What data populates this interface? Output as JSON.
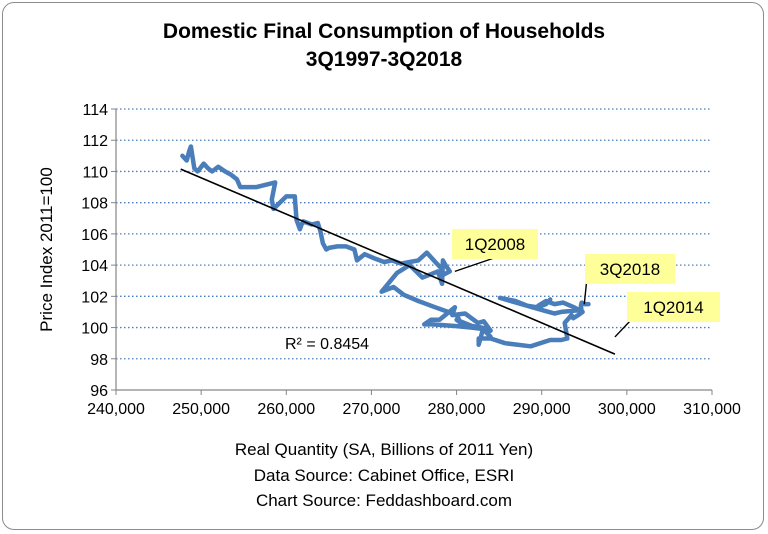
{
  "chart_data": {
    "type": "scatter",
    "title": "Domestic Final Consumption of Households",
    "subtitle": "3Q1997-3Q2018",
    "xlabel": "Real Quantity (SA, Billions of 2011 Yen)",
    "ylabel": "Price Index 2011=100",
    "xlim": [
      240000,
      310000
    ],
    "ylim": [
      96,
      114
    ],
    "xticks": [
      240000,
      250000,
      260000,
      270000,
      280000,
      290000,
      300000,
      310000
    ],
    "xtick_labels": [
      "240,000",
      "250,000",
      "260,000",
      "270,000",
      "280,000",
      "290,000",
      "300,000",
      "310,000"
    ],
    "yticks": [
      96,
      98,
      100,
      102,
      104,
      106,
      108,
      110,
      112,
      114
    ],
    "ytick_labels": [
      "96",
      "98",
      "100",
      "102",
      "104",
      "106",
      "108",
      "110",
      "112",
      "114"
    ],
    "grid": "horizontal dotted",
    "series_color": "#4a7ebb",
    "trend_color": "#000000",
    "label_box_color": "#ffff99",
    "series": [
      {
        "x": [
          247800,
          248300,
          248600,
          248800,
          249200,
          249600,
          250300,
          250800,
          251300,
          252000,
          252800,
          253500,
          254200,
          254600,
          256500,
          258700,
          258300,
          258500,
          260000,
          261000,
          261200,
          261600,
          261800,
          262000,
          263000,
          263700,
          264000,
          264300,
          264700,
          265000,
          266000,
          267000,
          268000,
          268300,
          269200,
          270500,
          271500,
          272400,
          273500,
          274500,
          275500,
          276500,
          277500,
          278200,
          278500,
          279200,
          278700,
          278400,
          278300,
          277800,
          276000,
          274500,
          273000,
          271200,
          272600,
          273800,
          275500,
          277500,
          279000,
          280000,
          280500,
          280000,
          281800,
          283000,
          284000,
          283200,
          282500,
          281000,
          279500,
          279800,
          278000,
          277000,
          276200,
          277200,
          279800,
          281800,
          283200,
          284000,
          283100,
          282600,
          282600,
          284000,
          285700,
          288700,
          291000,
          292300,
          293000,
          292700,
          293500,
          293700,
          294300,
          294800,
          293800,
          292500,
          291500,
          290500,
          289600,
          290200,
          290700,
          291000,
          290500,
          289500,
          288300,
          286900,
          285100,
          287600,
          290200,
          291500,
          292300,
          294200,
          294700,
          294600,
          294700,
          295000,
          295500
        ],
        "y": [
          111.0,
          110.7,
          111.3,
          111.6,
          110.2,
          110.0,
          110.5,
          110.2,
          110.0,
          110.3,
          110.0,
          109.8,
          109.5,
          109.0,
          109.0,
          109.3,
          108.2,
          107.6,
          108.4,
          108.4,
          106.9,
          106.3,
          106.6,
          106.8,
          106.6,
          106.7,
          106.2,
          105.4,
          105.0,
          105.1,
          105.2,
          105.2,
          105.0,
          104.3,
          104.7,
          104.4,
          104.2,
          104.3,
          104.1,
          104.2,
          104.3,
          104.8,
          104.2,
          103.8,
          103.4,
          103.6,
          104.0,
          104.3,
          102.8,
          103.6,
          103.2,
          104.0,
          103.5,
          102.3,
          102.6,
          102.1,
          101.7,
          101.3,
          101.0,
          100.8,
          100.3,
          100.5,
          100.1,
          100.0,
          99.8,
          100.4,
          100.3,
          100.9,
          100.8,
          101.3,
          100.5,
          100.5,
          100.2,
          100.2,
          100.1,
          100.0,
          99.9,
          99.4,
          99.9,
          98.9,
          99.3,
          99.3,
          99.0,
          98.8,
          99.2,
          99.2,
          99.3,
          100.3,
          100.8,
          100.6,
          100.8,
          101.0,
          101.3,
          101.6,
          101.5,
          101.7,
          101.4,
          101.5,
          101.6,
          101.8,
          101.5,
          101.3,
          101.4,
          101.7,
          101.9,
          101.5,
          101.1,
          100.9,
          101.0,
          101.1,
          101.0,
          101.4,
          101.6,
          101.5,
          101.5
        ]
      }
    ],
    "trendline": {
      "x": [
        247600,
        298600
      ],
      "y": [
        110.15,
        98.3
      ]
    },
    "r2_label": "R² = 0.8454",
    "annotations": [
      {
        "label": "1Q2008",
        "x": 279800,
        "y": 103.6
      },
      {
        "label": "3Q2018",
        "x": 295000,
        "y": 101.5
      },
      {
        "label": "1Q2014",
        "x": 298600,
        "y": 99.4
      }
    ]
  }
}
